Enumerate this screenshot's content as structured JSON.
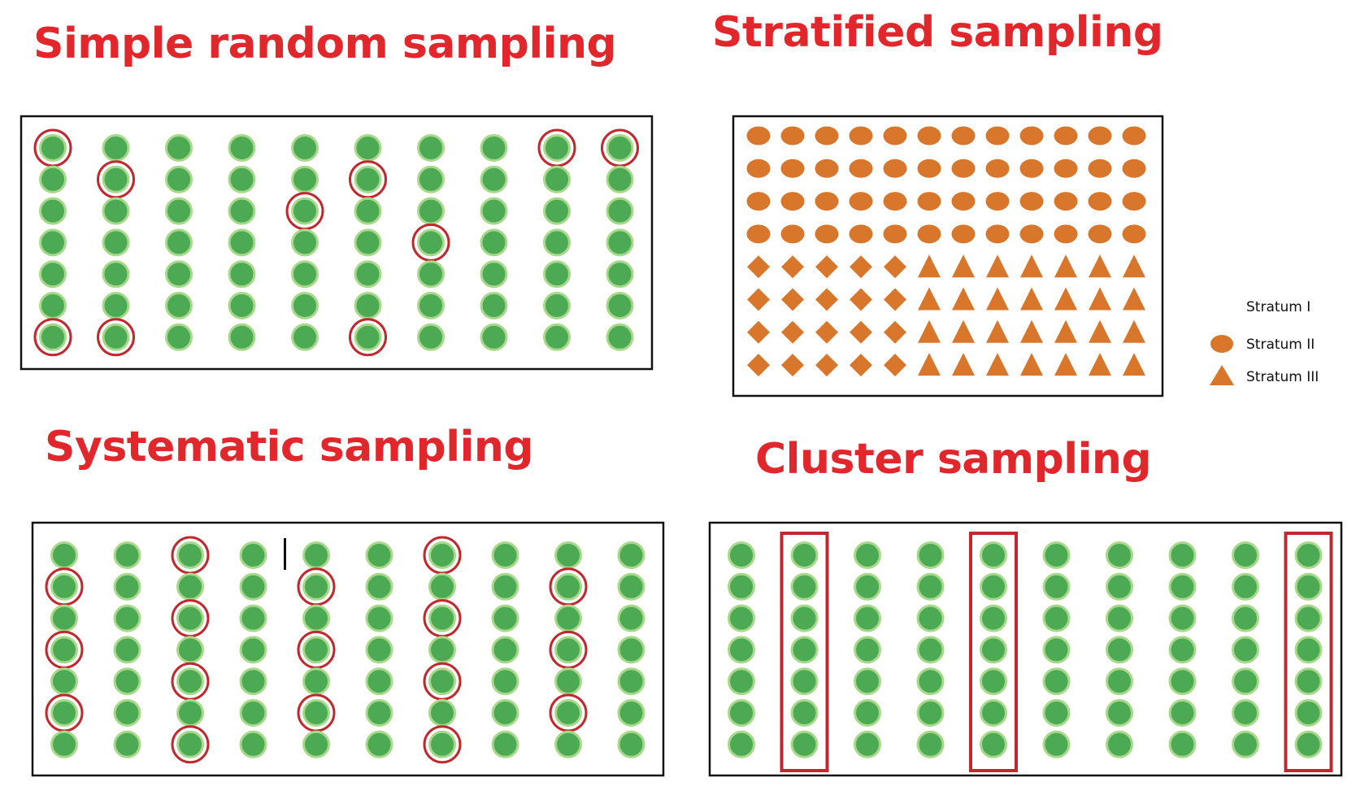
{
  "titles": {
    "simple_random": "Simple random sampling",
    "stratified": "Stratified sampling",
    "systematic": "Systematic sampling",
    "cluster": "Cluster sampling"
  },
  "colors": {
    "title": "#e2272c",
    "dot_fill": "#4caa54",
    "dot_ring": "#a8d98a",
    "sample_ring": "#c0282d",
    "stratum_fill": "#d8762c",
    "frame": "#111111"
  },
  "grid": {
    "rows": 7,
    "cols": 10
  },
  "simple_random": {
    "selected": [
      [
        0,
        0
      ],
      [
        0,
        8
      ],
      [
        0,
        9
      ],
      [
        1,
        1
      ],
      [
        1,
        5
      ],
      [
        2,
        4
      ],
      [
        3,
        6
      ],
      [
        6,
        0
      ],
      [
        6,
        1
      ],
      [
        6,
        5
      ]
    ]
  },
  "systematic": {
    "selected": [
      [
        0,
        2
      ],
      [
        0,
        6
      ],
      [
        1,
        0
      ],
      [
        1,
        4
      ],
      [
        1,
        8
      ],
      [
        2,
        2
      ],
      [
        2,
        6
      ],
      [
        3,
        0
      ],
      [
        3,
        4
      ],
      [
        3,
        8
      ],
      [
        4,
        2
      ],
      [
        4,
        6
      ],
      [
        5,
        0
      ],
      [
        5,
        4
      ],
      [
        5,
        8
      ],
      [
        6,
        2
      ],
      [
        6,
        6
      ]
    ]
  },
  "cluster": {
    "selected_columns": [
      1,
      4,
      9
    ]
  },
  "stratified": {
    "rows": 8,
    "cols": 12,
    "ellipse_rows": 4,
    "diamond_cols": 5,
    "legend": [
      {
        "shape": "none",
        "label": "Stratum I"
      },
      {
        "shape": "ellipse",
        "label": "Stratum II"
      },
      {
        "shape": "triangle",
        "label": "Stratum III"
      }
    ]
  }
}
